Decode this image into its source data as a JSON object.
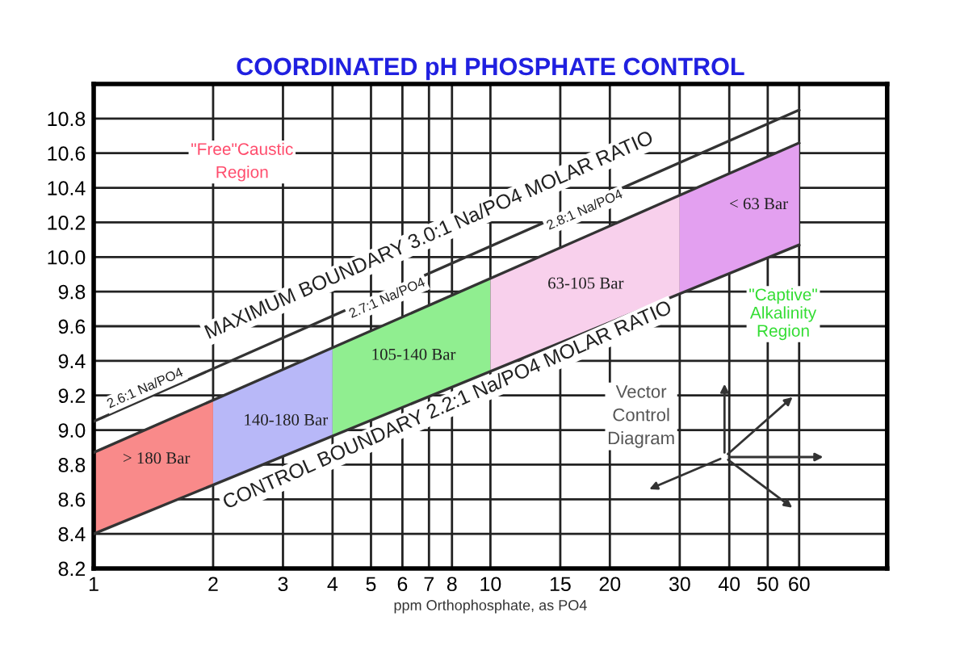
{
  "chart_data": {
    "type": "line",
    "title": "COORDINATED pH PHOSPHATE CONTROL",
    "xlabel": "ppm Orthophosphate, as PO4",
    "log": "x",
    "xlim": [
      1,
      100
    ],
    "ylim": [
      8.2,
      11.0
    ],
    "xticks": [
      1,
      2,
      3,
      4,
      5,
      6,
      7,
      8,
      10,
      15,
      20,
      30,
      40,
      50,
      60
    ],
    "yticks": [
      8.2,
      8.4,
      8.6,
      8.8,
      {
        "value": 9,
        "label": "9.0"
      },
      9.2,
      9.4,
      9.6,
      9.8,
      {
        "value": 10,
        "label": "10.0"
      },
      10.2,
      10.4,
      10.6,
      10.8
    ],
    "grid": true,
    "marker": "none",
    "series": [
      {
        "type": "area",
        "color": "#f98a8a",
        "x": [
          1,
          2
        ],
        "values": [
          8.87,
          9.17
        ]
      },
      {
        "type": "area",
        "color": "#b8b8f8",
        "x": [
          2,
          4
        ],
        "values": [
          9.17,
          9.48
        ]
      },
      {
        "type": "area",
        "color": "#90ee90",
        "x": [
          4,
          10
        ],
        "values": [
          9.48,
          9.88
        ]
      },
      {
        "type": "area",
        "color": "#f8d0ec",
        "x": [
          10,
          30
        ],
        "values": [
          9.88,
          10.36
        ]
      },
      {
        "type": "area",
        "color": "#e3a0f0",
        "x": [
          30,
          60
        ],
        "values": [
          10.36,
          10.66
        ]
      },
      {
        "color": "#333333",
        "x": [
          1,
          60
        ],
        "values": [
          9.05,
          10.85
        ]
      },
      {
        "color": "#333333",
        "x": [
          1,
          60
        ],
        "values": [
          8.87,
          10.66
        ]
      },
      {
        "color": "#333333",
        "x": [
          1,
          60
        ],
        "values": [
          8.4,
          10.07
        ]
      }
    ],
    "annotations": [
      "MAXIMUM BOUNDARY 3.0:1 Na/PO4 MOLAR RATIO",
      {
        "text": "CONTROL BOUNDARY 2.2:1 Na/PO4 MOLAR RATIO",
        "x": 7.6,
        "y": 9.23
      },
      "2.6:1 Na/PO4",
      "2.7:1 Na/PO4",
      "2.8:1 Na/PO4",
      "> 180 Bar",
      "140-180 Bar",
      "105-140 Bar",
      "63-105 Bar",
      "< 63 Bar",
      "\"Free\"Caustic\nRegion",
      "\"Captive\"\nAlkalinity\nRegion",
      "Vector\nControl\nDiagram"
    ]
  }
}
